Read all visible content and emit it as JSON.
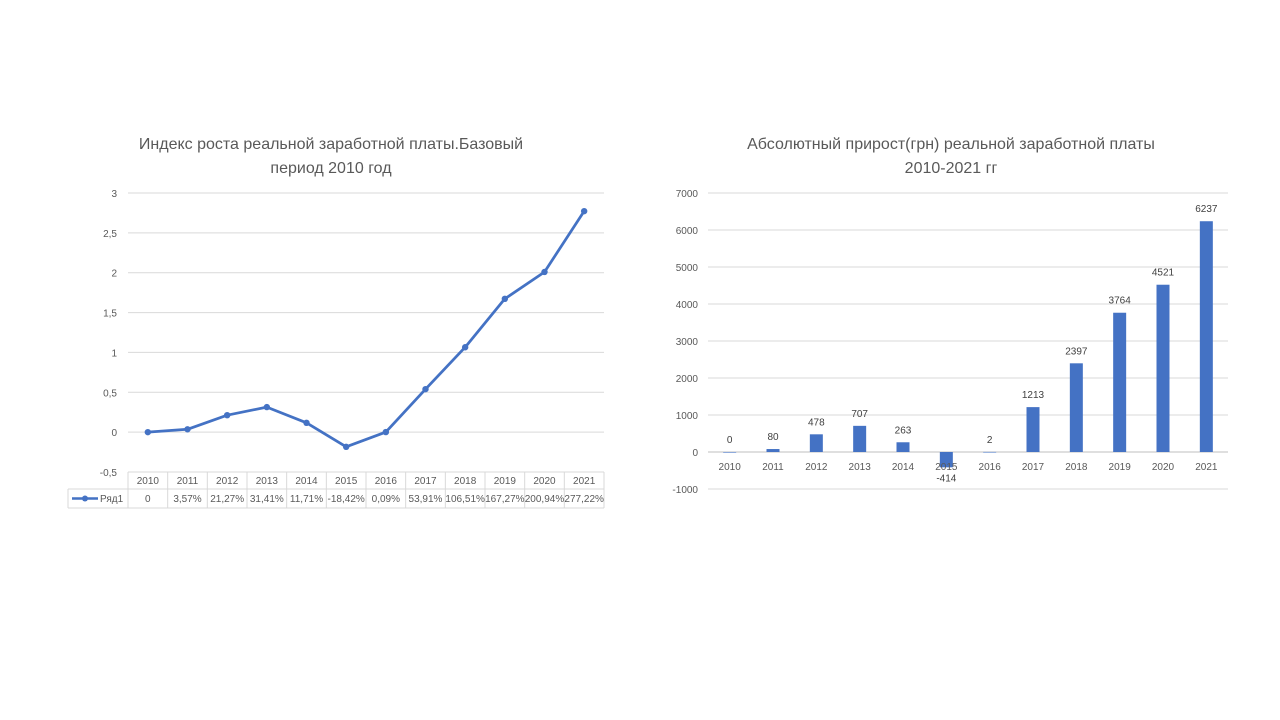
{
  "chart_data": [
    {
      "type": "line",
      "title_lines": [
        "Индекс роста реальной заработной платы.Базовый",
        "период 2010 год"
      ],
      "categories": [
        "2010",
        "2011",
        "2012",
        "2013",
        "2014",
        "2015",
        "2016",
        "2017",
        "2018",
        "2019",
        "2020",
        "2021"
      ],
      "series": [
        {
          "name": "Ряд1",
          "values": [
            0,
            0.0357,
            0.2127,
            0.3141,
            0.1171,
            -0.1842,
            0.0009,
            0.5391,
            1.0651,
            1.6727,
            2.0094,
            2.7722
          ],
          "table_labels": [
            "0",
            "3,57%",
            "21,27%",
            "31,41%",
            "11,71%",
            "-18,42%",
            "0,09%",
            "53,91%",
            "106,51%",
            "167,27%",
            "200,94%",
            "277,22%"
          ],
          "color": "#4472c4"
        }
      ],
      "ylim": [
        -0.5,
        3
      ],
      "ytick_values": [
        -0.5,
        0,
        0.5,
        1,
        1.5,
        2,
        2.5,
        3
      ],
      "ytick_labels": [
        "-0,5",
        "0",
        "0,5",
        "1",
        "1,5",
        "2",
        "2,5",
        "3"
      ],
      "data_table": true,
      "grid": true
    },
    {
      "type": "bar",
      "title_lines": [
        "Абсолютный прирост(грн) реальной заработной платы",
        "2010-2021 гг"
      ],
      "categories": [
        "2010",
        "2011",
        "2012",
        "2013",
        "2014",
        "2015",
        "2016",
        "2017",
        "2018",
        "2019",
        "2020",
        "2021"
      ],
      "values": [
        0,
        80,
        478,
        707,
        263,
        -414,
        2,
        1213,
        2397,
        3764,
        4521,
        6237
      ],
      "data_labels": [
        "0",
        "80",
        "478",
        "707",
        "263",
        "-414",
        "2",
        "1213",
        "2397",
        "3764",
        "4521",
        "6237"
      ],
      "ylim": [
        -1000,
        7000
      ],
      "ytick_values": [
        -1000,
        0,
        1000,
        2000,
        3000,
        4000,
        5000,
        6000,
        7000
      ],
      "ytick_labels": [
        "-1000",
        "0",
        "1000",
        "2000",
        "3000",
        "4000",
        "5000",
        "6000",
        "7000"
      ],
      "color": "#4472c4",
      "grid": true
    }
  ]
}
